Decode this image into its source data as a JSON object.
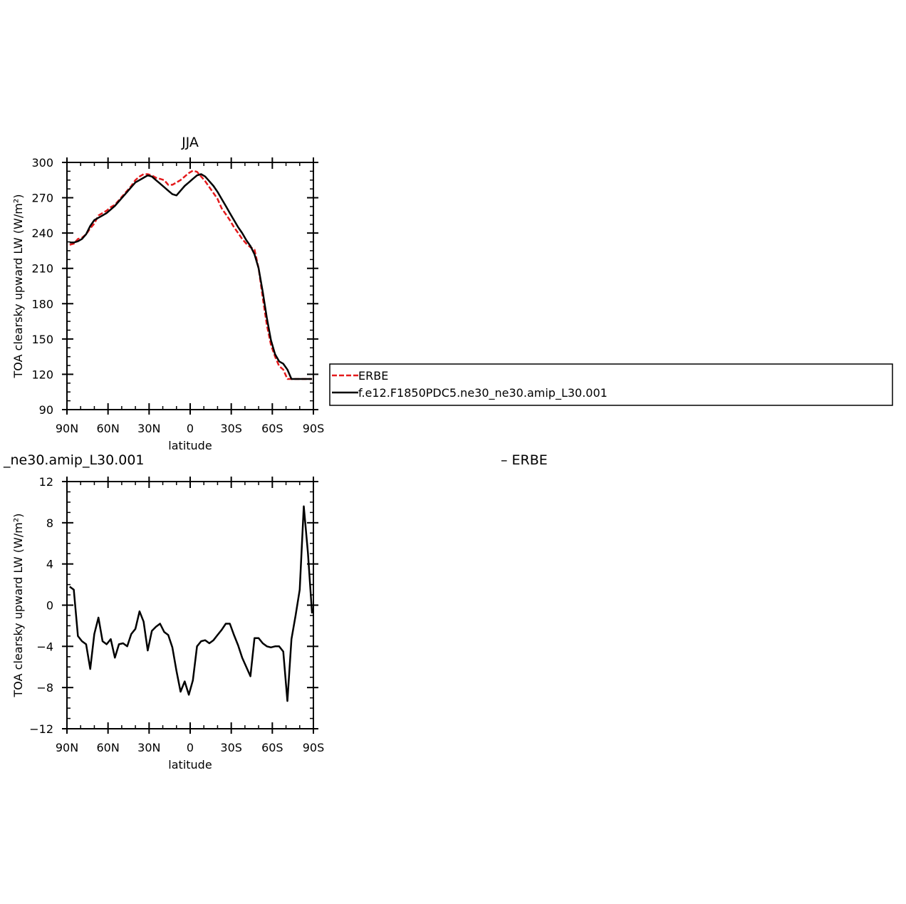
{
  "chart_data": [
    {
      "type": "line",
      "title": "JJA",
      "xlabel": "latitude",
      "ylabel": "TOA clearsky upward LW (W/m²)",
      "xlim": [
        90,
        -90
      ],
      "ylim": [
        90,
        300
      ],
      "xticks": [
        90,
        60,
        30,
        0,
        -30,
        -60,
        -90
      ],
      "xtick_labels": [
        "90N",
        "60N",
        "30N",
        "0",
        "30S",
        "60S",
        "90S"
      ],
      "yticks": [
        90,
        120,
        150,
        180,
        210,
        240,
        270,
        300
      ],
      "ytick_labels": [
        "90",
        "120",
        "150",
        "180",
        "210",
        "240",
        "270",
        "300"
      ],
      "legend": {
        "placement": "right",
        "entries": [
          "ERBE",
          "f.e12.F1850PDC5.ne30_ne30.amip_L30.001"
        ]
      },
      "series": [
        {
          "name": "ERBE",
          "color": "#e41a1c",
          "dash": true,
          "x": [
            88,
            85,
            82,
            79,
            76,
            73,
            70,
            67,
            64,
            61,
            58,
            55,
            52,
            49,
            46,
            43,
            40,
            37,
            34,
            31,
            28,
            25,
            22,
            19,
            16,
            13,
            10,
            7,
            4,
            1,
            -2,
            -5,
            -8,
            -11,
            -14,
            -17,
            -20,
            -23,
            -26,
            -29,
            -32,
            -35,
            -38,
            -41,
            -44,
            -47,
            -50,
            -53,
            -56,
            -59,
            -62,
            -65,
            -68,
            -71,
            -74,
            -77,
            -80,
            -83,
            -86,
            -89
          ],
          "values": [
            230,
            231,
            235,
            236,
            239,
            244,
            248,
            255,
            257,
            259,
            262,
            264,
            268,
            272,
            276,
            280,
            285,
            288,
            290,
            290,
            289,
            287,
            286,
            285,
            281,
            281,
            283,
            285,
            288,
            291,
            293,
            292,
            288,
            284,
            279,
            274,
            269,
            261,
            256,
            251,
            245,
            240,
            235,
            231,
            228,
            226,
            210,
            185,
            162,
            145,
            135,
            127,
            124,
            116,
            116,
            116,
            116,
            116,
            116,
            116
          ]
        },
        {
          "name": "f.e12.F1850PDC5.ne30_ne30.amip_L30.001",
          "color": "#000000",
          "dash": false,
          "x": [
            88,
            85,
            82,
            79,
            76,
            73,
            70,
            67,
            64,
            61,
            58,
            55,
            52,
            49,
            46,
            43,
            40,
            37,
            34,
            31,
            28,
            25,
            22,
            19,
            16,
            13,
            10,
            7,
            4,
            1,
            -2,
            -5,
            -8,
            -11,
            -14,
            -17,
            -20,
            -23,
            -26,
            -29,
            -32,
            -35,
            -38,
            -41,
            -44,
            -47,
            -50,
            -53,
            -56,
            -59,
            -62,
            -65,
            -68,
            -71,
            -74,
            -77,
            -80,
            -83,
            -86,
            -89
          ],
          "values": [
            232,
            232,
            233,
            235,
            239,
            246,
            251,
            253,
            255,
            257,
            260,
            263,
            267,
            271,
            275,
            279,
            283,
            285,
            287,
            289,
            288,
            285,
            282,
            279,
            276,
            273,
            272,
            276,
            280,
            283,
            286,
            289,
            290,
            288,
            284,
            280,
            275,
            269,
            263,
            257,
            251,
            245,
            240,
            234,
            229,
            222,
            210,
            190,
            168,
            149,
            137,
            131,
            129,
            124,
            116,
            116,
            116,
            116,
            116,
            116
          ]
        }
      ]
    },
    {
      "type": "line",
      "title": "_ne30.amip_L30.001",
      "title_right": "– ERBE",
      "xlabel": "latitude",
      "ylabel": "TOA clearsky upward LW (W/m²)",
      "xlim": [
        90,
        -90
      ],
      "ylim": [
        -12,
        12
      ],
      "xticks": [
        90,
        60,
        30,
        0,
        -30,
        -60,
        -90
      ],
      "xtick_labels": [
        "90N",
        "60N",
        "30N",
        "0",
        "30S",
        "60S",
        "90S"
      ],
      "yticks": [
        -12,
        -8,
        -4,
        0,
        4,
        8,
        12
      ],
      "ytick_labels": [
        "−12",
        "−8",
        "−4",
        "0",
        "4",
        "8",
        "12"
      ],
      "series": [
        {
          "color": "#000000",
          "dash": false,
          "x": [
            88,
            85,
            82,
            79,
            76,
            73,
            70,
            67,
            64,
            61,
            58,
            55,
            52,
            49,
            46,
            43,
            40,
            37,
            34,
            31,
            28,
            25,
            22,
            19,
            16,
            13,
            10,
            7,
            4,
            1,
            -2,
            -5,
            -8,
            -11,
            -14,
            -17,
            -20,
            -23,
            -26,
            -29,
            -32,
            -35,
            -38,
            -41,
            -44,
            -47,
            -50,
            -53,
            -56,
            -59,
            -62,
            -65,
            -68,
            -71,
            -74,
            -77,
            -80,
            -83,
            -86,
            -89
          ],
          "values": [
            1.8,
            1.5,
            -3.0,
            -3.5,
            -3.8,
            -6.2,
            -2.8,
            -1.2,
            -3.5,
            -3.8,
            -3.3,
            -5.1,
            -3.8,
            -3.7,
            -4.0,
            -2.8,
            -2.3,
            -0.6,
            -1.6,
            -4.4,
            -2.5,
            -2.1,
            -1.8,
            -2.6,
            -2.9,
            -4.1,
            -6.4,
            -8.4,
            -7.4,
            -8.7,
            -7.3,
            -4.0,
            -3.5,
            -3.4,
            -3.7,
            -3.4,
            -2.9,
            -2.4,
            -1.8,
            -1.8,
            -2.9,
            -3.9,
            -5.1,
            -6.0,
            -6.9,
            -3.2,
            -3.2,
            -3.7,
            -4.0,
            -4.1,
            -4.0,
            -4.0,
            -4.5,
            -9.3,
            -3.3,
            -1.0,
            1.5,
            9.6,
            5.1,
            -0.8
          ]
        }
      ]
    }
  ]
}
